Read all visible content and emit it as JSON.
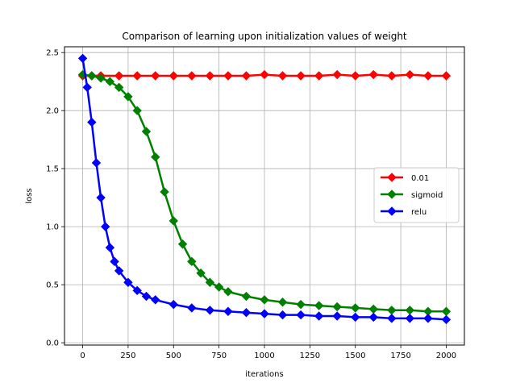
{
  "chart_data": {
    "type": "line",
    "title": "Comparison of learning upon initialization values of weight",
    "xlabel": "iterations",
    "ylabel": "loss",
    "xlim": [
      -100,
      2100
    ],
    "ylim": [
      -0.02,
      2.55
    ],
    "xticks": [
      0,
      250,
      500,
      750,
      1000,
      1250,
      1500,
      1750,
      2000
    ],
    "yticks": [
      0.0,
      0.5,
      1.0,
      1.5,
      2.0,
      2.5
    ],
    "grid": true,
    "legend_position": "center-right",
    "marker": "diamond",
    "series": [
      {
        "name": "0.01",
        "color": "#ff0000",
        "x": [
          0,
          50,
          100,
          200,
          300,
          400,
          500,
          600,
          700,
          800,
          900,
          1000,
          1100,
          1200,
          1300,
          1400,
          1500,
          1600,
          1700,
          1800,
          1900,
          2000
        ],
        "y": [
          2.3,
          2.3,
          2.3,
          2.3,
          2.3,
          2.3,
          2.3,
          2.3,
          2.3,
          2.3,
          2.3,
          2.31,
          2.3,
          2.3,
          2.3,
          2.31,
          2.3,
          2.31,
          2.3,
          2.31,
          2.3,
          2.3
        ]
      },
      {
        "name": "sigmoid",
        "color": "#008000",
        "x": [
          0,
          50,
          100,
          150,
          200,
          250,
          300,
          350,
          400,
          450,
          500,
          550,
          600,
          650,
          700,
          750,
          800,
          900,
          1000,
          1100,
          1200,
          1300,
          1400,
          1500,
          1600,
          1700,
          1800,
          1900,
          2000
        ],
        "y": [
          2.31,
          2.3,
          2.28,
          2.25,
          2.2,
          2.12,
          2.0,
          1.82,
          1.6,
          1.3,
          1.05,
          0.85,
          0.7,
          0.6,
          0.52,
          0.48,
          0.44,
          0.4,
          0.37,
          0.35,
          0.33,
          0.32,
          0.31,
          0.3,
          0.29,
          0.28,
          0.28,
          0.27,
          0.27
        ]
      },
      {
        "name": "relu",
        "color": "#0000ff",
        "x": [
          0,
          25,
          50,
          75,
          100,
          125,
          150,
          175,
          200,
          250,
          300,
          350,
          400,
          500,
          600,
          700,
          800,
          900,
          1000,
          1100,
          1200,
          1300,
          1400,
          1500,
          1600,
          1700,
          1800,
          1900,
          2000
        ],
        "y": [
          2.45,
          2.2,
          1.9,
          1.55,
          1.25,
          1.0,
          0.82,
          0.7,
          0.62,
          0.52,
          0.45,
          0.4,
          0.37,
          0.33,
          0.3,
          0.28,
          0.27,
          0.26,
          0.25,
          0.24,
          0.24,
          0.23,
          0.23,
          0.22,
          0.22,
          0.21,
          0.21,
          0.21,
          0.2
        ]
      }
    ]
  }
}
